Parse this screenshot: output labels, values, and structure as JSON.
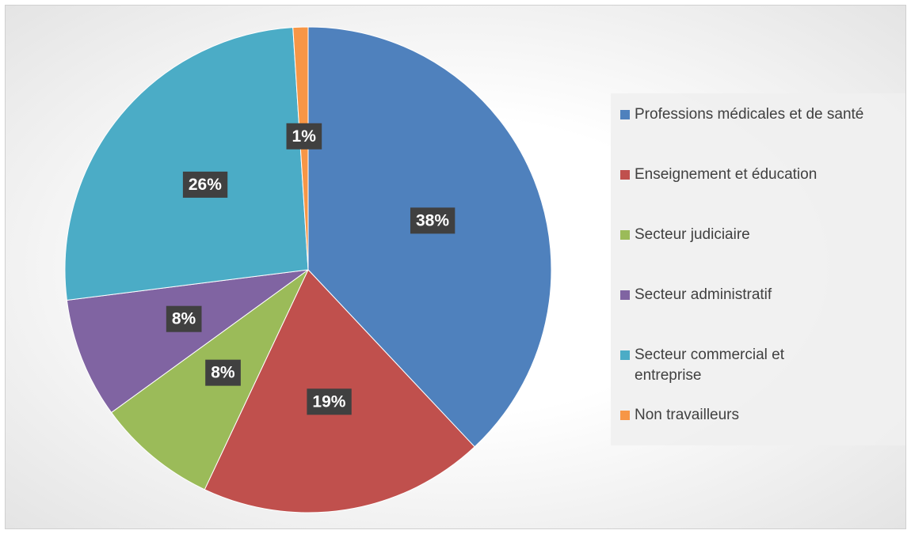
{
  "chart_data": {
    "type": "pie",
    "categories": [
      "Professions médicales et de santé",
      "Enseignement et éducation",
      "Secteur judiciaire",
      "Secteur administratif",
      "Secteur commercial et entreprise",
      "Non travailleurs"
    ],
    "values": [
      38,
      19,
      8,
      8,
      26,
      1
    ],
    "value_labels": [
      "38%",
      "19%",
      "8%",
      "8%",
      "26%",
      "1%"
    ],
    "colors": [
      "#4f81bd",
      "#c0504d",
      "#9bbb59",
      "#8064a2",
      "#4bacc6",
      "#f79646"
    ],
    "legend": "right"
  }
}
